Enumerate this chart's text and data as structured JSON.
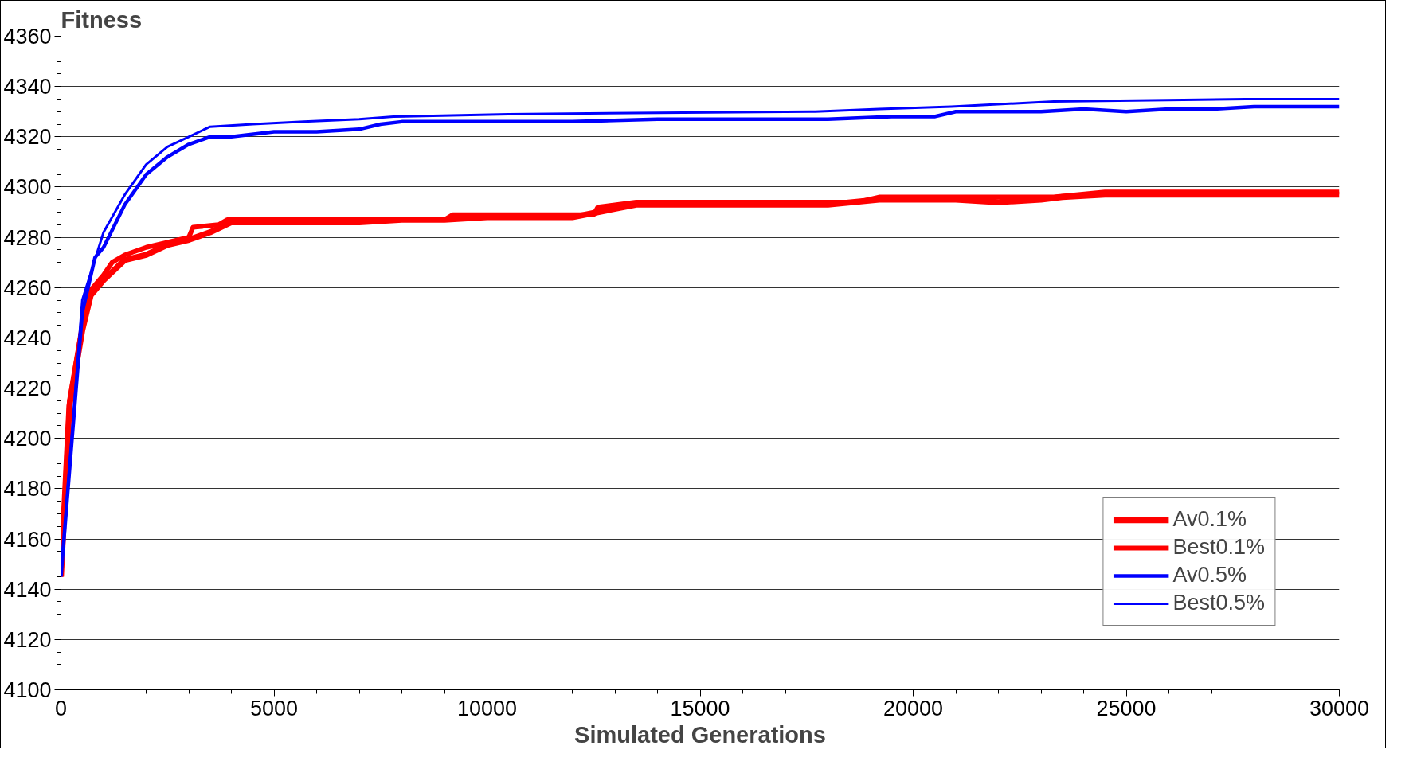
{
  "chart_data": {
    "type": "line",
    "ylabel": "Fitness",
    "xlabel": "Simulated Generations",
    "xlim": [
      0,
      30000
    ],
    "xticks": [
      0,
      5000,
      10000,
      15000,
      20000,
      25000,
      30000
    ],
    "ylim": [
      4100,
      4360
    ],
    "yticks": [
      4100,
      4120,
      4140,
      4160,
      4180,
      4200,
      4220,
      4240,
      4260,
      4280,
      4300,
      4320,
      4340,
      4360
    ],
    "grid": "y",
    "legend": "bottom right",
    "marker": "none",
    "line_style": "solid",
    "series": [
      {
        "name": "Av0.1%",
        "color": "#ff0000",
        "x": [
          0,
          200,
          500,
          700,
          1000,
          1500,
          2000,
          2500,
          3000,
          3500,
          4000,
          5000,
          6000,
          7000,
          8000,
          9000,
          10000,
          11000,
          12000,
          12600,
          13500,
          15000,
          16000,
          18000,
          19200,
          20000,
          21000,
          22000,
          23000,
          23500,
          24500,
          26000,
          27000,
          28000,
          29000,
          30000
        ],
        "values": [
          4145,
          4213,
          4243,
          4257,
          4263,
          4271,
          4273,
          4277,
          4279,
          4282,
          4286,
          4286,
          4286,
          4286,
          4287,
          4287,
          4288,
          4288,
          4288,
          4290,
          4293,
          4293,
          4293,
          4293,
          4295,
          4295,
          4295,
          4294,
          4295,
          4296,
          4297,
          4297,
          4297,
          4297,
          4297,
          4297
        ]
      },
      {
        "name": "Best0.1%",
        "color": "#ff0000",
        "x": [
          0,
          200,
          500,
          700,
          1000,
          1200,
          1500,
          2000,
          2500,
          3000,
          3100,
          3700,
          3900,
          9000,
          9200,
          12500,
          12600,
          13500,
          18700,
          19200,
          23300,
          24500,
          30000
        ],
        "values": [
          4145,
          4215,
          4245,
          4259,
          4265,
          4270,
          4273,
          4276,
          4278,
          4280,
          4284,
          4285,
          4287,
          4287,
          4289,
          4289,
          4292,
          4294,
          4294,
          4296,
          4296,
          4298,
          4298
        ]
      },
      {
        "name": "Av0.5%",
        "color": "#0000ff",
        "x": [
          0,
          500,
          800,
          1000,
          1500,
          2000,
          2500,
          3000,
          3500,
          4000,
          5000,
          6000,
          7000,
          7500,
          8000,
          9000,
          10000,
          12000,
          14000,
          16000,
          18000,
          19500,
          20500,
          21000,
          22000,
          23000,
          24000,
          25000,
          26000,
          27000,
          28000,
          29000,
          30000
        ],
        "values": [
          4145,
          4250,
          4272,
          4276,
          4293,
          4305,
          4312,
          4317,
          4320,
          4320,
          4322,
          4322,
          4323,
          4325,
          4326,
          4326,
          4326,
          4326,
          4327,
          4327,
          4327,
          4328,
          4328,
          4330,
          4330,
          4330,
          4331,
          4330,
          4331,
          4331,
          4332,
          4332,
          4332
        ]
      },
      {
        "name": "Best0.5%",
        "color": "#0000ff",
        "x": [
          0,
          500,
          1000,
          1500,
          2000,
          2500,
          3000,
          3500,
          4500,
          5700,
          7000,
          7800,
          10500,
          17700,
          19200,
          20900,
          23300,
          27800,
          30000
        ],
        "values": [
          4145,
          4255,
          4282,
          4297,
          4309,
          4316,
          4320,
          4324,
          4325,
          4326,
          4327,
          4328,
          4329,
          4330,
          4331,
          4332,
          4334,
          4335,
          4335
        ]
      }
    ]
  }
}
